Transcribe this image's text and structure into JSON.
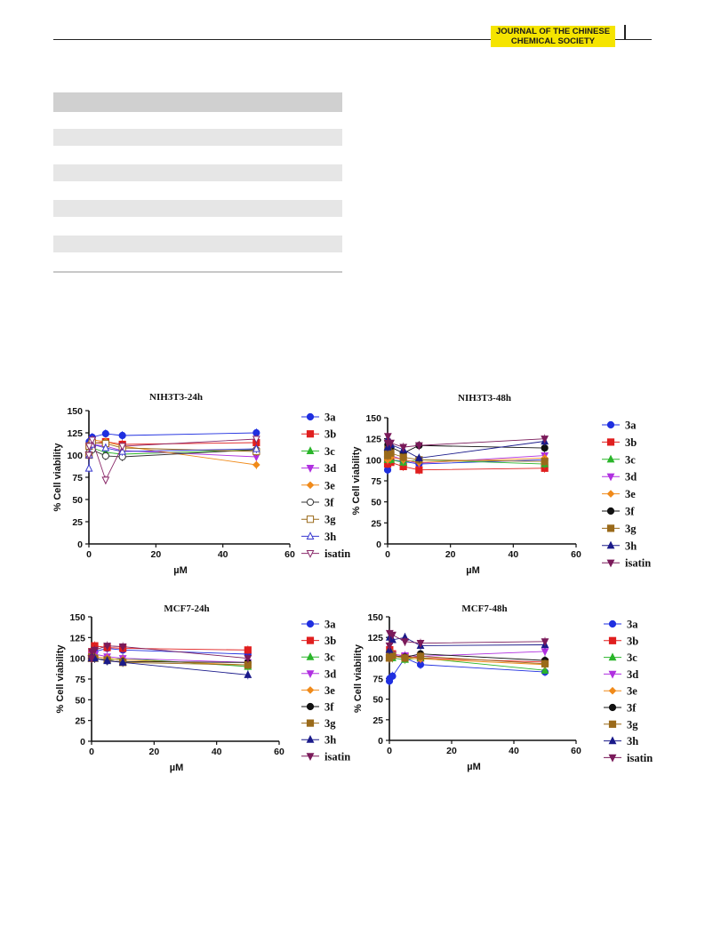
{
  "header": {
    "journal_line1": "JOURNAL OF THE CHINESE",
    "journal_line2": "CHEMICAL SOCIETY",
    "badge_color": "#f5e400"
  },
  "table_placeholder": {
    "rows": 5,
    "band_color": "#e6e6e6",
    "header_color": "#d0d0d0"
  },
  "chart_data": [
    {
      "type": "line",
      "title": "NIH3T3-24h",
      "xlabel": "µM",
      "ylabel": "% Cell viability",
      "xlim": [
        0,
        60
      ],
      "ylim": [
        0,
        150
      ],
      "xticks": [
        0,
        20,
        40,
        60
      ],
      "yticks": [
        0,
        25,
        50,
        75,
        100,
        125,
        150
      ],
      "grid": false,
      "legend": "right",
      "series": [
        {
          "name": "3a",
          "color": "#1f2fe0",
          "marker": "circle-filled",
          "x": [
            0.01,
            0.1,
            1,
            5,
            10,
            50
          ],
          "y": [
            100,
            115,
            120,
            124,
            122,
            125
          ]
        },
        {
          "name": "3b",
          "color": "#e01f1f",
          "marker": "square-filled",
          "x": [
            0.01,
            0.1,
            1,
            5,
            10,
            50
          ],
          "y": [
            100,
            110,
            113,
            115,
            112,
            114
          ]
        },
        {
          "name": "3c",
          "color": "#2ab52a",
          "marker": "triangle-up-filled",
          "x": [
            0.01,
            0.1,
            1,
            5,
            10,
            50
          ],
          "y": [
            100,
            105,
            108,
            103,
            101,
            106
          ]
        },
        {
          "name": "3d",
          "color": "#b030e0",
          "marker": "triangle-down-filled",
          "x": [
            0.01,
            0.1,
            1,
            5,
            10,
            50
          ],
          "y": [
            100,
            108,
            112,
            110,
            105,
            98
          ]
        },
        {
          "name": "3e",
          "color": "#f08a1a",
          "marker": "diamond-filled",
          "x": [
            0.01,
            0.1,
            1,
            5,
            10,
            50
          ],
          "y": [
            100,
            112,
            117,
            115,
            110,
            89
          ]
        },
        {
          "name": "3f",
          "color": "#333333",
          "marker": "circle-open",
          "x": [
            0.01,
            0.1,
            1,
            5,
            10,
            50
          ],
          "y": [
            100,
            103,
            106,
            99,
            98,
            106
          ]
        },
        {
          "name": "3g",
          "color": "#9a6a1a",
          "marker": "square-open",
          "x": [
            0.01,
            0.1,
            1,
            5,
            10,
            50
          ],
          "y": [
            100,
            110,
            114,
            113,
            108,
            104
          ]
        },
        {
          "name": "3h",
          "color": "#3a3ad0",
          "marker": "triangle-up-open",
          "x": [
            0.01,
            0.1,
            1,
            5,
            10,
            50
          ],
          "y": [
            85,
            100,
            112,
            108,
            104,
            107
          ]
        },
        {
          "name": "isatin",
          "color": "#8a2a6a",
          "marker": "triangle-down-open",
          "x": [
            0.01,
            0.1,
            1,
            5,
            10,
            50
          ],
          "y": [
            100,
            110,
            117,
            72,
            110,
            118
          ]
        }
      ]
    },
    {
      "type": "line",
      "title": "NIH3T3-48h",
      "xlabel": "µM",
      "ylabel": "% Cell viability",
      "xlim": [
        0,
        60
      ],
      "ylim": [
        0,
        150
      ],
      "xticks": [
        0,
        20,
        40,
        60
      ],
      "yticks": [
        0,
        25,
        50,
        75,
        100,
        125,
        150
      ],
      "grid": false,
      "legend": "right",
      "series": [
        {
          "name": "3a",
          "color": "#1f2fe0",
          "marker": "circle-filled",
          "x": [
            0.01,
            0.1,
            1,
            5,
            10,
            50
          ],
          "y": [
            88,
            95,
            100,
            98,
            95,
            100
          ]
        },
        {
          "name": "3b",
          "color": "#e01f1f",
          "marker": "square-filled",
          "x": [
            0.01,
            0.1,
            1,
            5,
            10,
            50
          ],
          "y": [
            95,
            98,
            97,
            92,
            88,
            90
          ]
        },
        {
          "name": "3c",
          "color": "#2ab52a",
          "marker": "triangle-up-filled",
          "x": [
            0.01,
            0.1,
            1,
            5,
            10,
            50
          ],
          "y": [
            100,
            102,
            100,
            97,
            100,
            95
          ]
        },
        {
          "name": "3d",
          "color": "#b030e0",
          "marker": "triangle-down-filled",
          "x": [
            0.01,
            0.1,
            1,
            5,
            10,
            50
          ],
          "y": [
            100,
            108,
            105,
            100,
            96,
            105
          ]
        },
        {
          "name": "3e",
          "color": "#f08a1a",
          "marker": "diamond-filled",
          "x": [
            0.01,
            0.1,
            1,
            5,
            10,
            50
          ],
          "y": [
            100,
            105,
            103,
            100,
            97,
            102
          ]
        },
        {
          "name": "3f",
          "color": "#111111",
          "marker": "circle-filled",
          "x": [
            0.01,
            0.1,
            1,
            5,
            10,
            50
          ],
          "y": [
            110,
            118,
            115,
            108,
            117,
            114
          ]
        },
        {
          "name": "3g",
          "color": "#9a6a1a",
          "marker": "square-filled",
          "x": [
            0.01,
            0.1,
            1,
            5,
            10,
            50
          ],
          "y": [
            105,
            112,
            108,
            103,
            100,
            98
          ]
        },
        {
          "name": "3h",
          "color": "#1a1a8a",
          "marker": "triangle-up-filled",
          "x": [
            0.01,
            0.1,
            1,
            5,
            10,
            50
          ],
          "y": [
            115,
            125,
            118,
            112,
            102,
            122
          ]
        },
        {
          "name": "isatin",
          "color": "#7a1a5a",
          "marker": "triangle-down-filled",
          "x": [
            0.01,
            0.1,
            1,
            5,
            10,
            50
          ],
          "y": [
            120,
            128,
            120,
            115,
            117,
            125
          ]
        }
      ]
    },
    {
      "type": "line",
      "title": "MCF7-24h",
      "xlabel": "µM",
      "ylabel": "% Cell viability",
      "xlim": [
        0,
        60
      ],
      "ylim": [
        0,
        150
      ],
      "xticks": [
        0,
        20,
        40,
        60
      ],
      "yticks": [
        0,
        25,
        50,
        75,
        100,
        125,
        150
      ],
      "grid": false,
      "legend": "right",
      "series": [
        {
          "name": "3a",
          "color": "#1f2fe0",
          "marker": "circle-filled",
          "x": [
            0.01,
            0.1,
            1,
            5,
            10,
            50
          ],
          "y": [
            100,
            105,
            108,
            112,
            110,
            105
          ]
        },
        {
          "name": "3b",
          "color": "#e01f1f",
          "marker": "square-filled",
          "x": [
            0.01,
            0.1,
            1,
            5,
            10,
            50
          ],
          "y": [
            100,
            108,
            115,
            113,
            112,
            110
          ]
        },
        {
          "name": "3c",
          "color": "#2ab52a",
          "marker": "triangle-up-filled",
          "x": [
            0.01,
            0.1,
            1,
            5,
            10,
            50
          ],
          "y": [
            100,
            102,
            100,
            98,
            100,
            90
          ]
        },
        {
          "name": "3d",
          "color": "#b030e0",
          "marker": "triangle-down-filled",
          "x": [
            0.01,
            0.1,
            1,
            5,
            10,
            50
          ],
          "y": [
            100,
            104,
            105,
            102,
            100,
            95
          ]
        },
        {
          "name": "3e",
          "color": "#f08a1a",
          "marker": "diamond-filled",
          "x": [
            0.01,
            0.1,
            1,
            5,
            10,
            50
          ],
          "y": [
            100,
            103,
            102,
            100,
            98,
            92
          ]
        },
        {
          "name": "3f",
          "color": "#111111",
          "marker": "circle-filled",
          "x": [
            0.01,
            0.1,
            1,
            5,
            10,
            50
          ],
          "y": [
            100,
            101,
            100,
            97,
            96,
            95
          ]
        },
        {
          "name": "3g",
          "color": "#9a6a1a",
          "marker": "square-filled",
          "x": [
            0.01,
            0.1,
            1,
            5,
            10,
            50
          ],
          "y": [
            100,
            102,
            100,
            98,
            95,
            92
          ]
        },
        {
          "name": "3h",
          "color": "#1a1a8a",
          "marker": "triangle-up-filled",
          "x": [
            0.01,
            0.1,
            1,
            5,
            10,
            50
          ],
          "y": [
            100,
            103,
            100,
            97,
            95,
            80
          ]
        },
        {
          "name": "isatin",
          "color": "#7a1a5a",
          "marker": "triangle-down-filled",
          "x": [
            0.01,
            0.1,
            1,
            5,
            10,
            50
          ],
          "y": [
            100,
            108,
            110,
            115,
            114,
            100
          ]
        }
      ]
    },
    {
      "type": "line",
      "title": "MCF7-48h",
      "xlabel": "µM",
      "ylabel": "% Cell viability",
      "xlim": [
        0,
        60
      ],
      "ylim": [
        0,
        150
      ],
      "xticks": [
        0,
        20,
        40,
        60
      ],
      "yticks": [
        0,
        25,
        50,
        75,
        100,
        125,
        150
      ],
      "grid": false,
      "legend": "right",
      "series": [
        {
          "name": "3a",
          "color": "#1f2fe0",
          "marker": "circle-filled",
          "x": [
            0.01,
            0.1,
            1,
            5,
            10,
            50
          ],
          "y": [
            72,
            75,
            78,
            100,
            92,
            83
          ]
        },
        {
          "name": "3b",
          "color": "#e01f1f",
          "marker": "square-filled",
          "x": [
            0.01,
            0.1,
            1,
            5,
            10,
            50
          ],
          "y": [
            100,
            110,
            105,
            102,
            100,
            95
          ]
        },
        {
          "name": "3c",
          "color": "#2ab52a",
          "marker": "triangle-up-filled",
          "x": [
            0.01,
            0.1,
            1,
            5,
            10,
            50
          ],
          "y": [
            100,
            102,
            100,
            98,
            100,
            85
          ]
        },
        {
          "name": "3d",
          "color": "#b030e0",
          "marker": "triangle-down-filled",
          "x": [
            0.01,
            0.1,
            1,
            5,
            10,
            50
          ],
          "y": [
            100,
            105,
            104,
            103,
            102,
            108
          ]
        },
        {
          "name": "3e",
          "color": "#f08a1a",
          "marker": "diamond-filled",
          "x": [
            0.01,
            0.1,
            1,
            5,
            10,
            50
          ],
          "y": [
            100,
            103,
            102,
            100,
            99,
            92
          ]
        },
        {
          "name": "3f",
          "color": "#111111",
          "marker": "circle-filled",
          "x": [
            0.01,
            0.1,
            1,
            5,
            10,
            50
          ],
          "y": [
            100,
            104,
            103,
            101,
            105,
            97
          ]
        },
        {
          "name": "3g",
          "color": "#9a6a1a",
          "marker": "square-filled",
          "x": [
            0.01,
            0.1,
            1,
            5,
            10,
            50
          ],
          "y": [
            100,
            106,
            103,
            100,
            102,
            93
          ]
        },
        {
          "name": "3h",
          "color": "#1a1a8a",
          "marker": "triangle-up-filled",
          "x": [
            0.01,
            0.1,
            1,
            5,
            10,
            50
          ],
          "y": [
            110,
            125,
            122,
            125,
            115,
            116
          ]
        },
        {
          "name": "isatin",
          "color": "#7a1a5a",
          "marker": "triangle-down-filled",
          "x": [
            0.01,
            0.1,
            1,
            5,
            10,
            50
          ],
          "y": [
            115,
            130,
            128,
            120,
            118,
            120
          ]
        }
      ]
    }
  ]
}
